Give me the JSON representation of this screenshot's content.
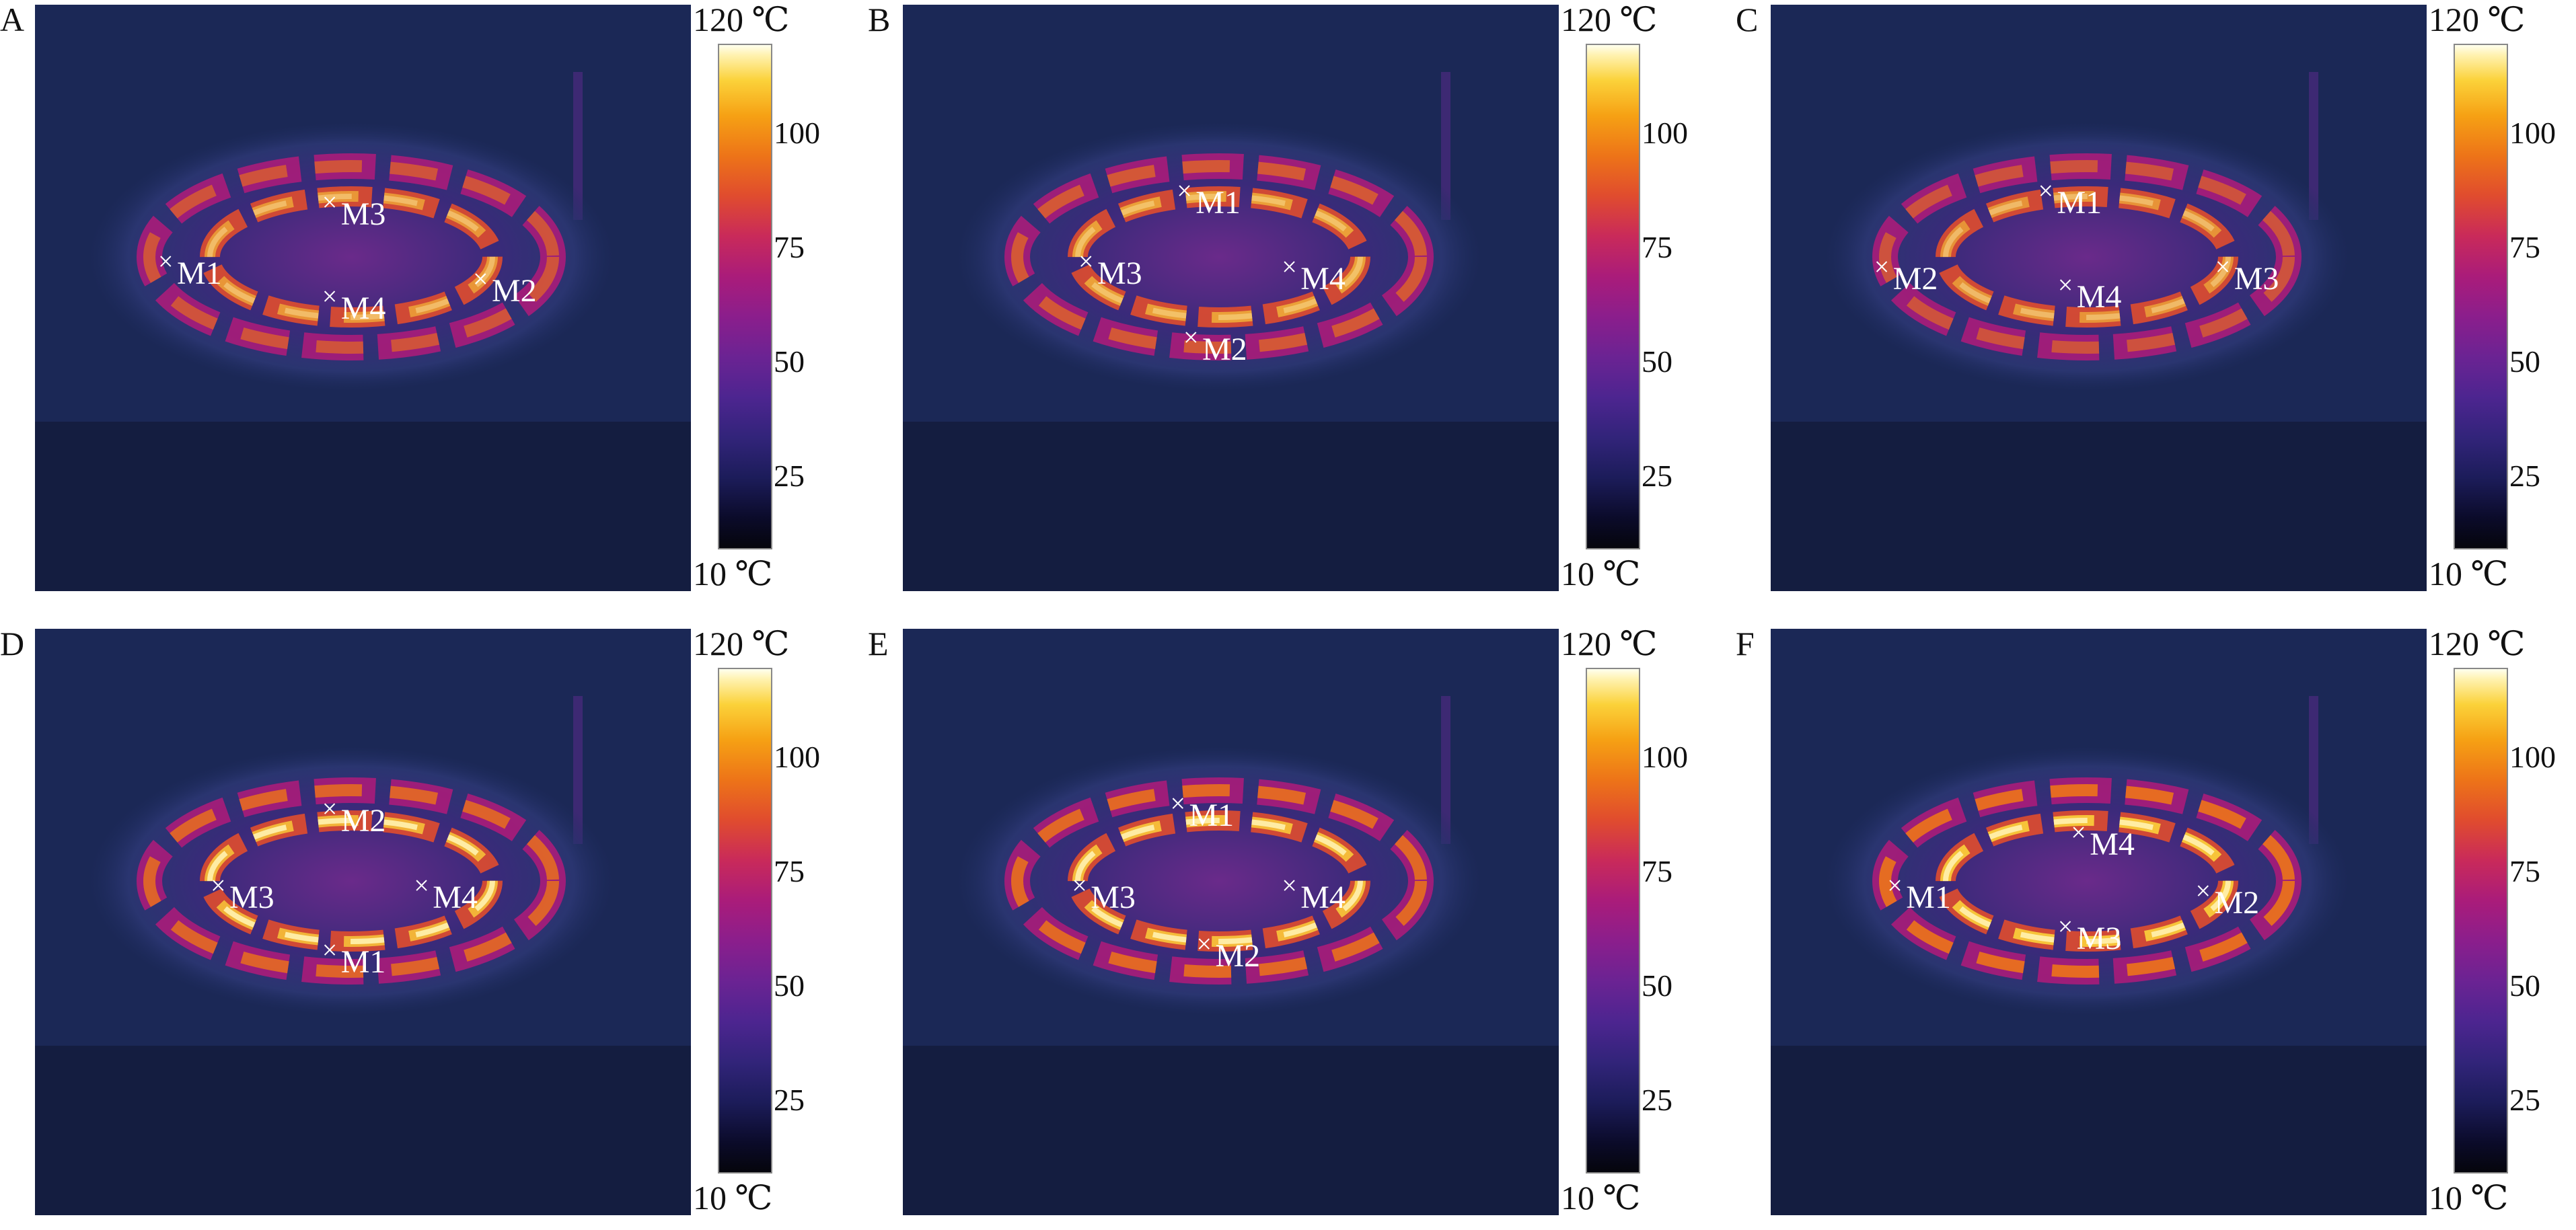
{
  "scale": {
    "max_label": "120 ℃",
    "min_label": "10 ℃",
    "ticks": [
      "100",
      "75",
      "50",
      "25"
    ]
  },
  "colors": {
    "background": "#1b2856",
    "hot": "#fff2b0",
    "warm": "#ed7418",
    "mid": "#aa1c7a"
  },
  "panels": [
    {
      "letter": "A",
      "markers": [
        {
          "label": "M1",
          "fx": 0.2,
          "fy": 0.44
        },
        {
          "label": "M2",
          "fx": 0.68,
          "fy": 0.47
        },
        {
          "label": "M3",
          "fx": 0.45,
          "fy": 0.34
        },
        {
          "label": "M4",
          "fx": 0.45,
          "fy": 0.5
        }
      ]
    },
    {
      "letter": "B",
      "markers": [
        {
          "label": "M1",
          "fx": 0.43,
          "fy": 0.32
        },
        {
          "label": "M2",
          "fx": 0.44,
          "fy": 0.57
        },
        {
          "label": "M3",
          "fx": 0.28,
          "fy": 0.44
        },
        {
          "label": "M4",
          "fx": 0.59,
          "fy": 0.45
        }
      ]
    },
    {
      "letter": "C",
      "markers": [
        {
          "label": "M1",
          "fx": 0.42,
          "fy": 0.32
        },
        {
          "label": "M2",
          "fx": 0.17,
          "fy": 0.45
        },
        {
          "label": "M3",
          "fx": 0.69,
          "fy": 0.45
        },
        {
          "label": "M4",
          "fx": 0.45,
          "fy": 0.48
        }
      ]
    },
    {
      "letter": "D",
      "markers": [
        {
          "label": "M1",
          "fx": 0.45,
          "fy": 0.55
        },
        {
          "label": "M2",
          "fx": 0.45,
          "fy": 0.31
        },
        {
          "label": "M3",
          "fx": 0.28,
          "fy": 0.44
        },
        {
          "label": "M4",
          "fx": 0.59,
          "fy": 0.44
        }
      ]
    },
    {
      "letter": "E",
      "markers": [
        {
          "label": "M1",
          "fx": 0.42,
          "fy": 0.3
        },
        {
          "label": "M2",
          "fx": 0.46,
          "fy": 0.54
        },
        {
          "label": "M3",
          "fx": 0.27,
          "fy": 0.44
        },
        {
          "label": "M4",
          "fx": 0.59,
          "fy": 0.44
        }
      ]
    },
    {
      "letter": "F",
      "markers": [
        {
          "label": "M1",
          "fx": 0.19,
          "fy": 0.44
        },
        {
          "label": "M2",
          "fx": 0.66,
          "fy": 0.45
        },
        {
          "label": "M3",
          "fx": 0.45,
          "fy": 0.51
        },
        {
          "label": "M4",
          "fx": 0.47,
          "fy": 0.35
        }
      ]
    }
  ]
}
